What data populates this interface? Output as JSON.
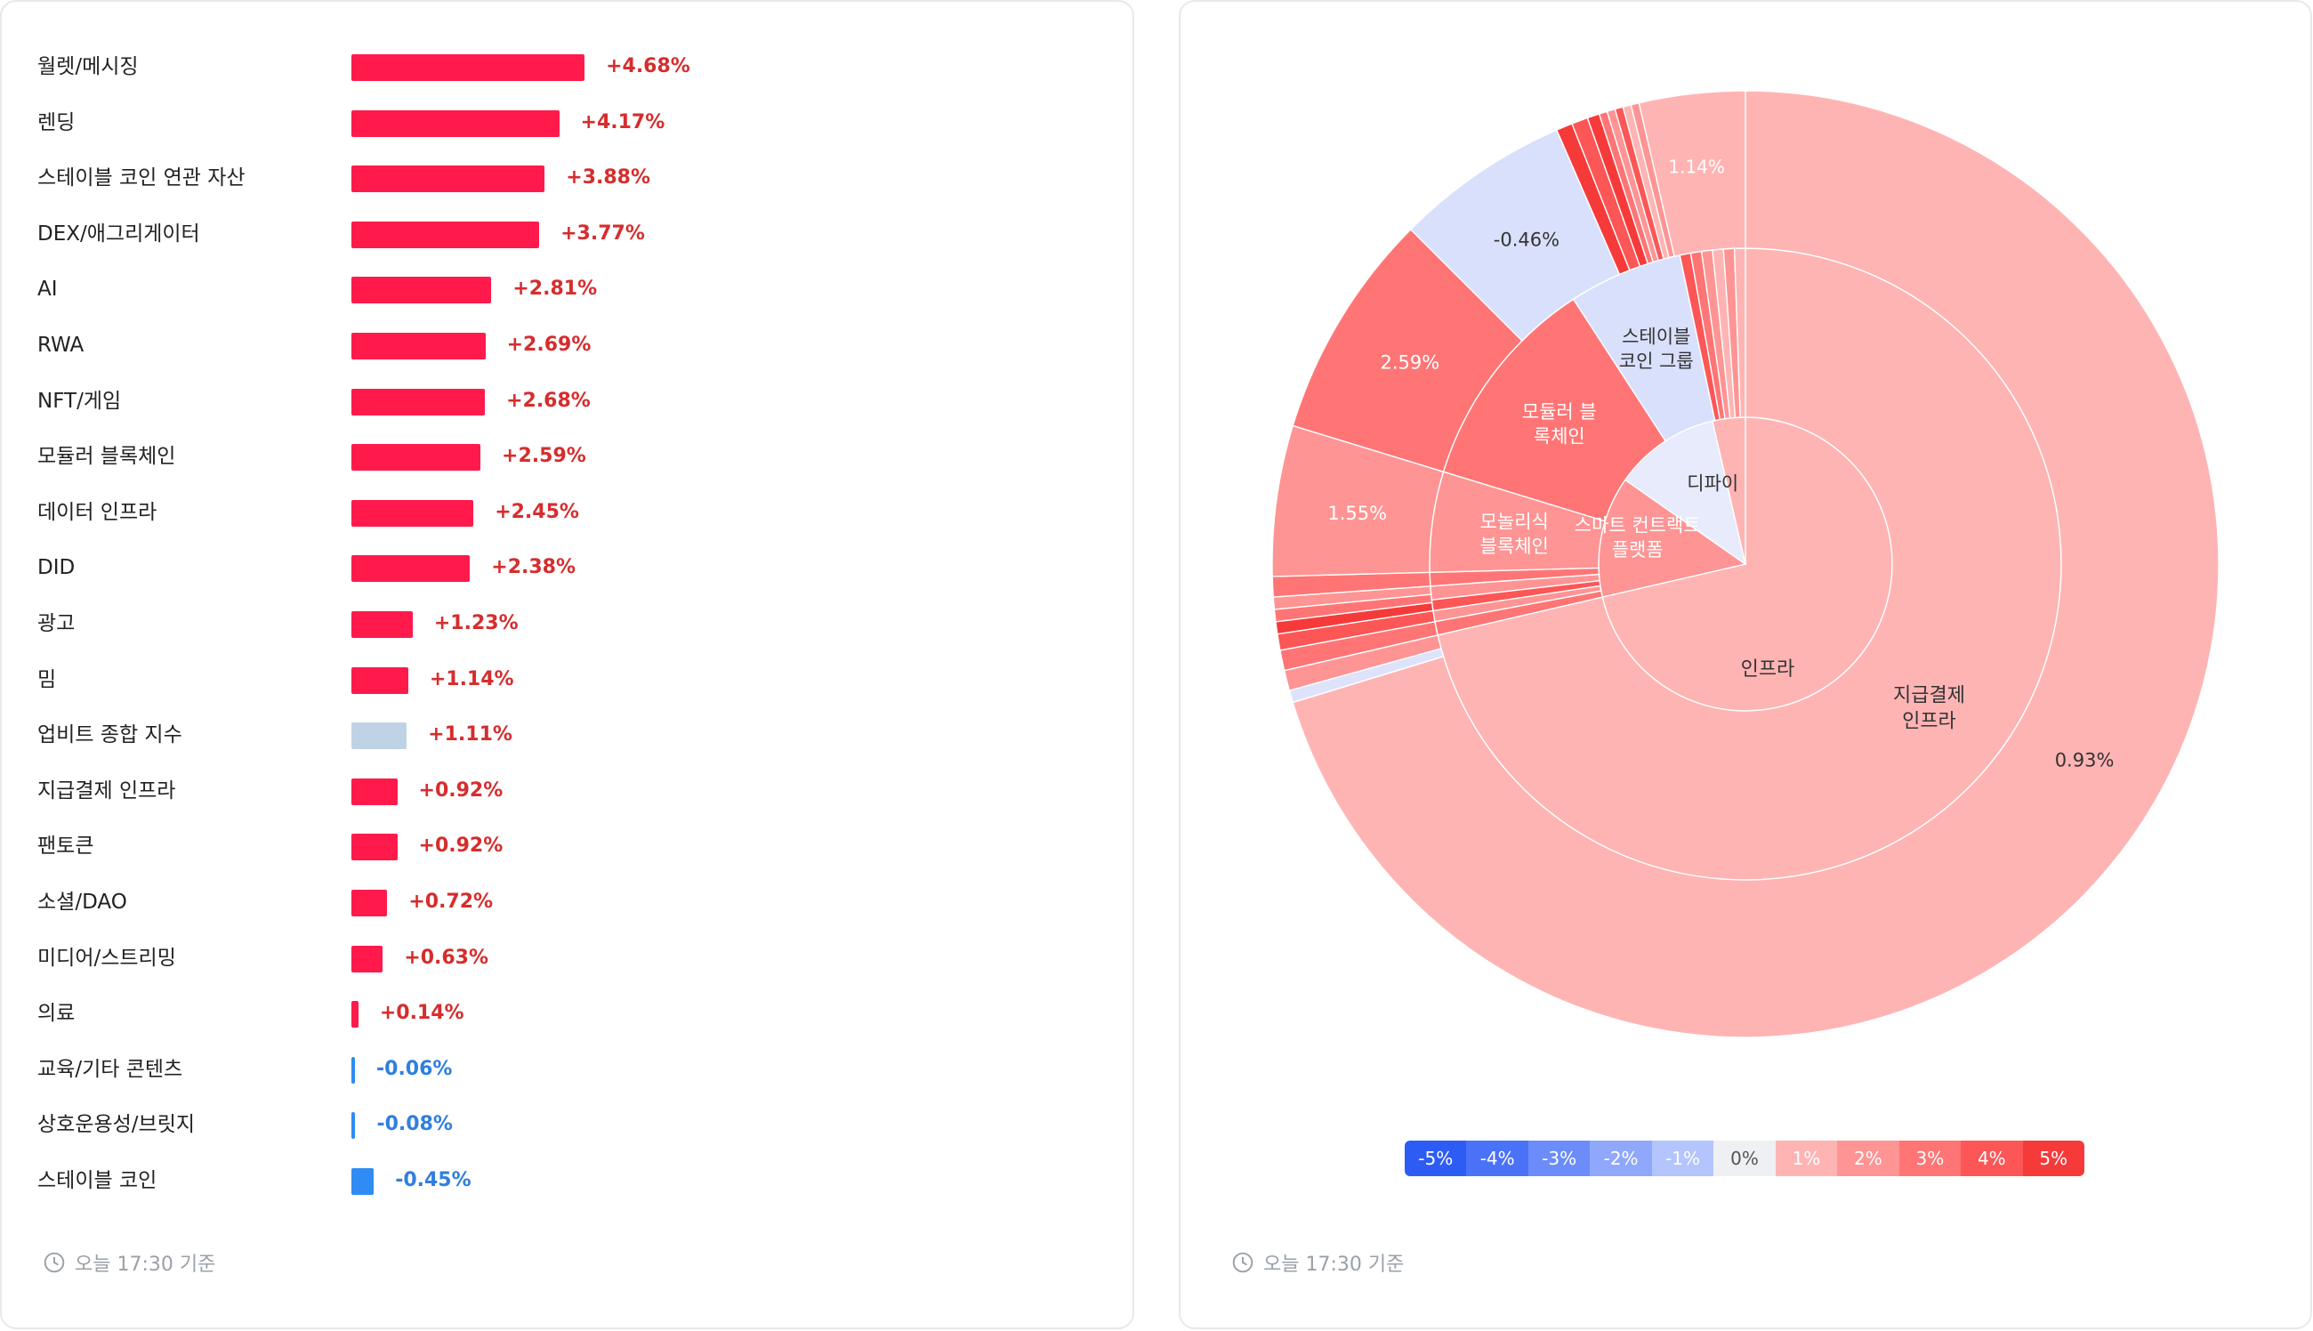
{
  "left_panel": {
    "footer_time": "오늘 17:30 기준",
    "clock_icon": "clock-icon"
  },
  "right_panel": {
    "footer_time": "오늘 17:30 기준",
    "clock_icon": "clock-icon"
  },
  "colors": {
    "positive_bar": "#ff1a4b",
    "negative_bar": "#2f8cf3",
    "index_bar": "#c0d3e6",
    "positive_text": "#d62d2d",
    "negative_text": "#2f7fe0"
  },
  "chart_data": [
    {
      "type": "bar",
      "orientation": "horizontal",
      "categories": [
        "월렛/메시징",
        "렌딩",
        "스테이블 코인 연관 자산",
        "DEX/애그리게이터",
        "AI",
        "RWA",
        "NFT/게임",
        "모듈러 블록체인",
        "데이터 인프라",
        "DID",
        "광고",
        "밈",
        "업비트 종합 지수",
        "지급결제 인프라",
        "팬토큰",
        "소셜/DAO",
        "미디어/스트리밍",
        "의료",
        "교육/기타 콘텐츠",
        "상호운용성/브릿지",
        "스테이블 코인"
      ],
      "values": [
        4.68,
        4.17,
        3.88,
        3.77,
        2.81,
        2.69,
        2.68,
        2.59,
        2.45,
        2.38,
        1.23,
        1.14,
        1.11,
        0.92,
        0.92,
        0.72,
        0.63,
        0.14,
        -0.06,
        -0.08,
        -0.45
      ],
      "value_labels": [
        "+4.68%",
        "+4.17%",
        "+3.88%",
        "+3.77%",
        "+2.81%",
        "+2.69%",
        "+2.68%",
        "+2.59%",
        "+2.45%",
        "+2.38%",
        "+1.23%",
        "+1.14%",
        "+1.11%",
        "+0.92%",
        "+0.92%",
        "+0.72%",
        "+0.63%",
        "+0.14%",
        "-0.06%",
        "-0.08%",
        "-0.45%"
      ],
      "highlight_category": "업비트 종합 지수"
    },
    {
      "type": "sunburst",
      "levels": [
        {
          "ring": "inner",
          "segments": [
            {
              "label": "인프라",
              "share": 0.74,
              "change": 0.93
            },
            {
              "label": "스마트 컨트랙트 플랫폼",
              "share": 0.06,
              "change": 1.5
            },
            {
              "label": "디파이",
              "share": 0.02,
              "change": 0.0
            }
          ]
        },
        {
          "ring": "middle",
          "segments": [
            {
              "label": "지급결제 인프라",
              "change": 0.93
            },
            {
              "label": "모놀리식 블록체인",
              "change": 1.55
            },
            {
              "label": "모듈러 블록체인",
              "change": 2.59
            },
            {
              "label": "스테이블 코인 그룹",
              "change": -0.46
            }
          ]
        },
        {
          "ring": "outer",
          "labeled_segments": [
            {
              "label": "0.93%",
              "change": 0.93
            },
            {
              "label": "1.55%",
              "change": 1.55
            },
            {
              "label": "2.59%",
              "change": 2.59
            },
            {
              "label": "-0.46%",
              "change": -0.46
            },
            {
              "label": "1.14%",
              "change": 1.14
            }
          ]
        }
      ],
      "color_scale": {
        "labels": [
          "-5%",
          "-4%",
          "-3%",
          "-2%",
          "-1%",
          "0%",
          "1%",
          "2%",
          "3%",
          "4%",
          "5%"
        ],
        "colors": [
          "#2d5cf5",
          "#4a72f7",
          "#6b8cf9",
          "#8fa8fb",
          "#b4c4fd",
          "#eef0f4",
          "#ffb4b4",
          "#ff9494",
          "#ff7575",
          "#fd5656",
          "#f63a3a"
        ]
      }
    }
  ]
}
